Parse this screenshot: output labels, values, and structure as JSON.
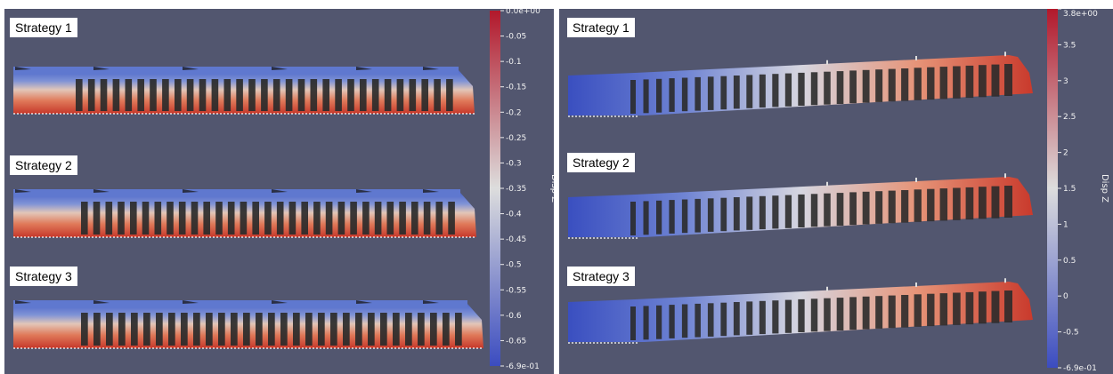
{
  "left": {
    "labels": [
      "Strategy 1",
      "Strategy 2",
      "Strategy 3"
    ],
    "colorbar": {
      "title": "Disp Z",
      "ticks": [
        "0.0e+00",
        "-0.05",
        "-0.1",
        "-0.15",
        "-0.2",
        "-0.25",
        "-0.3",
        "-0.35",
        "-0.4",
        "-0.45",
        "-0.5",
        "-0.55",
        "-0.6",
        "-0.65",
        "-6.9e-01"
      ],
      "top_color": "#b2182b",
      "mid_color": "#dddddd",
      "bottom_color": "#3b4cc0"
    }
  },
  "right": {
    "labels": [
      "Strategy 1",
      "Strategy 2",
      "Strategy 3"
    ],
    "colorbar": {
      "title": "Disp Z",
      "ticks": [
        "3.8e+00",
        "3.5",
        "3",
        "2.5",
        "2",
        "1.5",
        "1",
        "0.5",
        "0",
        "-0.5",
        "-6.9e-01"
      ],
      "top_color": "#b2182b",
      "mid_color": "#dddddd",
      "bottom_color": "#3b4cc0"
    }
  },
  "colors": {
    "background": "#52566f",
    "rib_dark": "#2b2b2b",
    "cold": "#4a63c8",
    "warm": "#d0452f"
  }
}
